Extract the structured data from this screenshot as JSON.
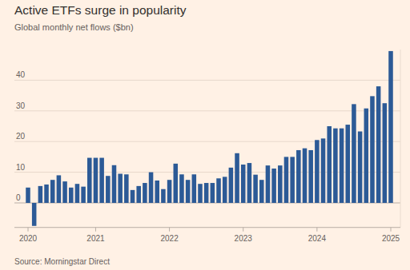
{
  "chart_data": {
    "type": "bar",
    "title": "Active ETFs surge in popularity",
    "subtitle": "Global monthly net flows ($bn)",
    "source": "Source: Morningstar Direct",
    "categories": [
      "2020",
      null,
      null,
      null,
      null,
      null,
      null,
      null,
      null,
      null,
      null,
      "2021",
      null,
      null,
      null,
      null,
      null,
      null,
      null,
      null,
      null,
      null,
      null,
      "2022",
      null,
      null,
      null,
      null,
      null,
      null,
      null,
      null,
      null,
      null,
      null,
      "2023",
      null,
      null,
      null,
      null,
      null,
      null,
      null,
      null,
      null,
      null,
      null,
      "2024",
      null,
      null,
      null,
      null,
      null,
      null,
      null,
      null,
      null,
      null,
      null,
      "2025"
    ],
    "values": [
      5,
      -7.5,
      5.5,
      6,
      7.5,
      9,
      7,
      5,
      6.2,
      5.3,
      14.7,
      14.7,
      14.7,
      8.8,
      12.3,
      9.5,
      9.3,
      4.2,
      5.5,
      6.5,
      10,
      7.3,
      4.5,
      7.5,
      12.8,
      9.3,
      7.5,
      9.3,
      6.2,
      6.5,
      6.5,
      8,
      8.5,
      11.5,
      16.2,
      12.5,
      13,
      9.2,
      7.5,
      12.2,
      11.2,
      12.2,
      15,
      15,
      17.2,
      17.8,
      17.2,
      20.5,
      21,
      25,
      24.3,
      24.3,
      25.5,
      32.2,
      23.3,
      30.8,
      34.8,
      38,
      32.5,
      49.5
    ],
    "color": "#2c5a96",
    "ylim": [
      -8,
      50
    ],
    "yticks": [
      0,
      10,
      20,
      30,
      40
    ],
    "grid": true
  }
}
